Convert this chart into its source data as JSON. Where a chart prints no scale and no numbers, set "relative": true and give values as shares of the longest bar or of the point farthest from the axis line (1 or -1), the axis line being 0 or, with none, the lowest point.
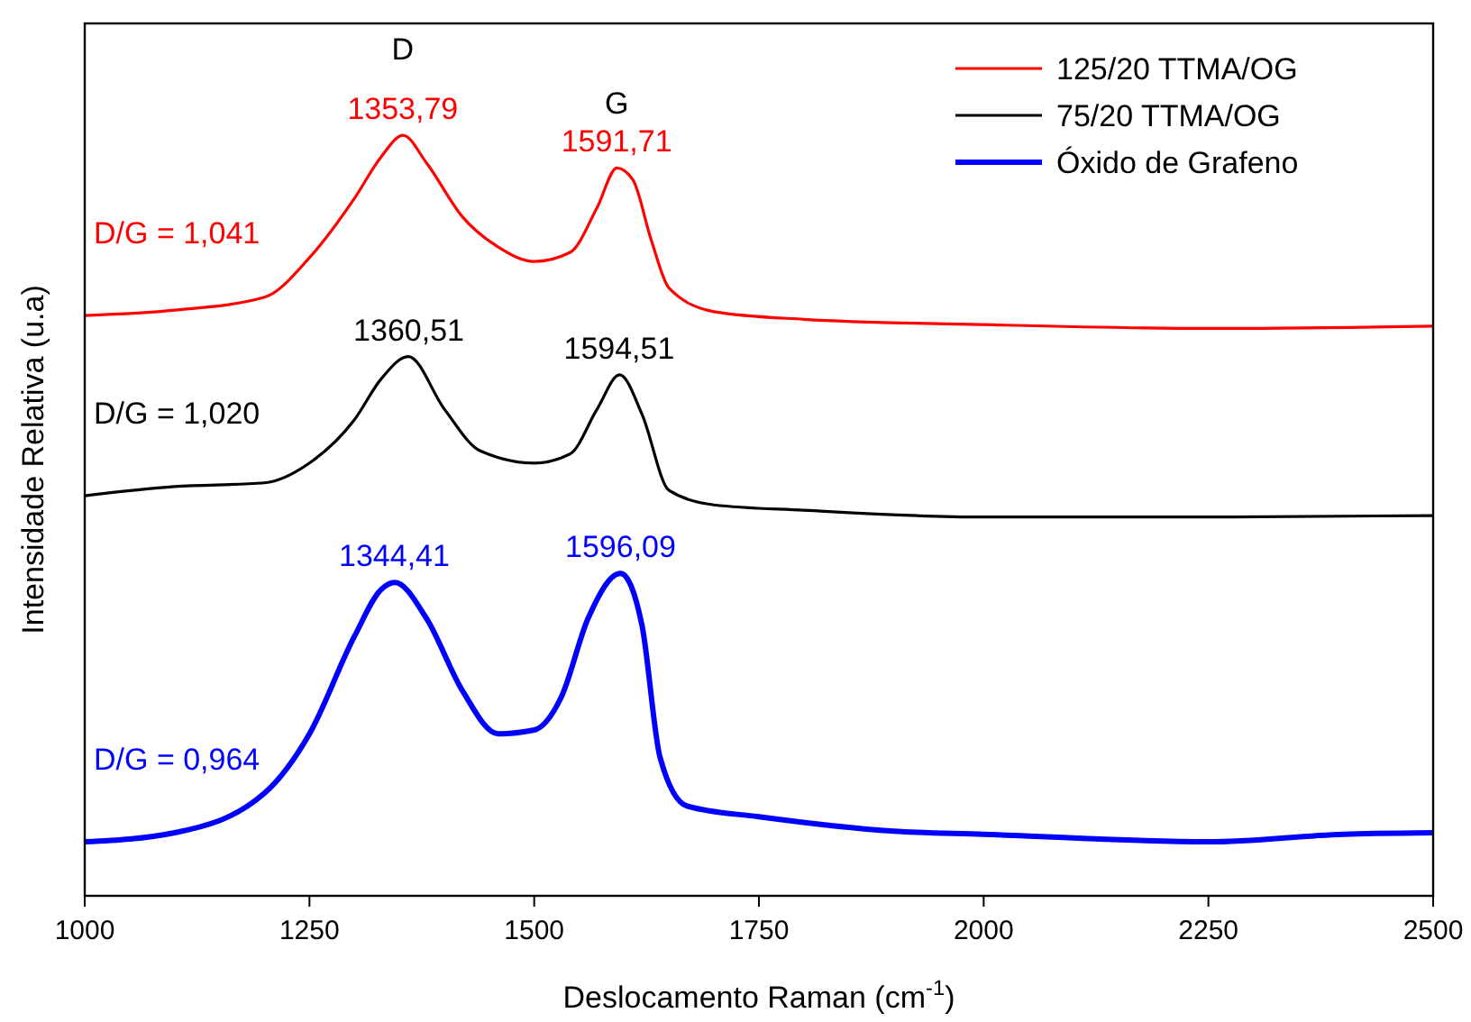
{
  "chart_data": {
    "type": "line",
    "relative": true,
    "xlabel": "Deslocamento Raman (cm$^{-1}$)",
    "ylabel": "Intensidade Relativa (u.a)",
    "xlim": [
      1000,
      2500
    ],
    "xticks": [
      1000,
      1250,
      1500,
      1750,
      2000,
      2250,
      2500
    ],
    "tick_labels": "x",
    "legend": "top right",
    "grid": false,
    "series": [
      {
        "name": "125/20 TTMA/OG",
        "color": "#ff0000",
        "x": [
          1000,
          1100,
          1200,
          1250,
          1300,
          1330,
          1354,
          1380,
          1420,
          1460,
          1500,
          1540,
          1570,
          1592,
          1610,
          1630,
          1650,
          1700,
          1800,
          2000,
          2250,
          2500
        ],
        "values": [
          0.763,
          0.77,
          0.787,
          0.839,
          0.917,
          0.972,
          1.0,
          0.964,
          0.893,
          0.853,
          0.834,
          0.846,
          0.905,
          0.957,
          0.941,
          0.863,
          0.799,
          0.768,
          0.758,
          0.751,
          0.746,
          0.749
        ]
      },
      {
        "name": "75/20 TTMA/OG",
        "color": "#000000",
        "x": [
          1000,
          1100,
          1200,
          1250,
          1300,
          1330,
          1360,
          1400,
          1440,
          1500,
          1540,
          1570,
          1595,
          1620,
          1650,
          1700,
          1800,
          2000,
          2250,
          2500
        ],
        "values": [
          0.526,
          0.538,
          0.543,
          0.569,
          0.626,
          0.68,
          0.709,
          0.64,
          0.585,
          0.569,
          0.581,
          0.64,
          0.685,
          0.633,
          0.533,
          0.514,
          0.507,
          0.498,
          0.498,
          0.5
        ]
      },
      {
        "name": "Óxido de Grafeno",
        "color": "#0000ff",
        "x": [
          1000,
          1100,
          1200,
          1250,
          1300,
          1330,
          1345,
          1380,
          1420,
          1460,
          1500,
          1530,
          1560,
          1596,
          1620,
          1640,
          1670,
          1750,
          1900,
          2000,
          2250,
          2400,
          2500
        ],
        "values": [
          0.071,
          0.083,
          0.135,
          0.213,
          0.341,
          0.403,
          0.412,
          0.365,
          0.27,
          0.213,
          0.218,
          0.261,
          0.365,
          0.424,
          0.355,
          0.182,
          0.118,
          0.104,
          0.085,
          0.081,
          0.071,
          0.081,
          0.083
        ]
      }
    ],
    "annotations": [
      "D/G = 1,041",
      "D/G = 1,020",
      "D/G = 0,964",
      "D",
      "G",
      {
        "text": "1353,79",
        "x": 1353.79,
        "y": 1.0
      },
      {
        "text": "1591,71",
        "x": 1591.71,
        "y": 0.957
      },
      {
        "text": "1360,51",
        "x": 1360.51,
        "y": 0.709
      },
      {
        "text": "1594,51",
        "x": 1594.51,
        "y": 0.685
      },
      {
        "text": "1344,41",
        "x": 1344.41,
        "y": 0.412
      },
      {
        "text": "1596,09",
        "x": 1596.09,
        "y": 0.424
      }
    ]
  }
}
